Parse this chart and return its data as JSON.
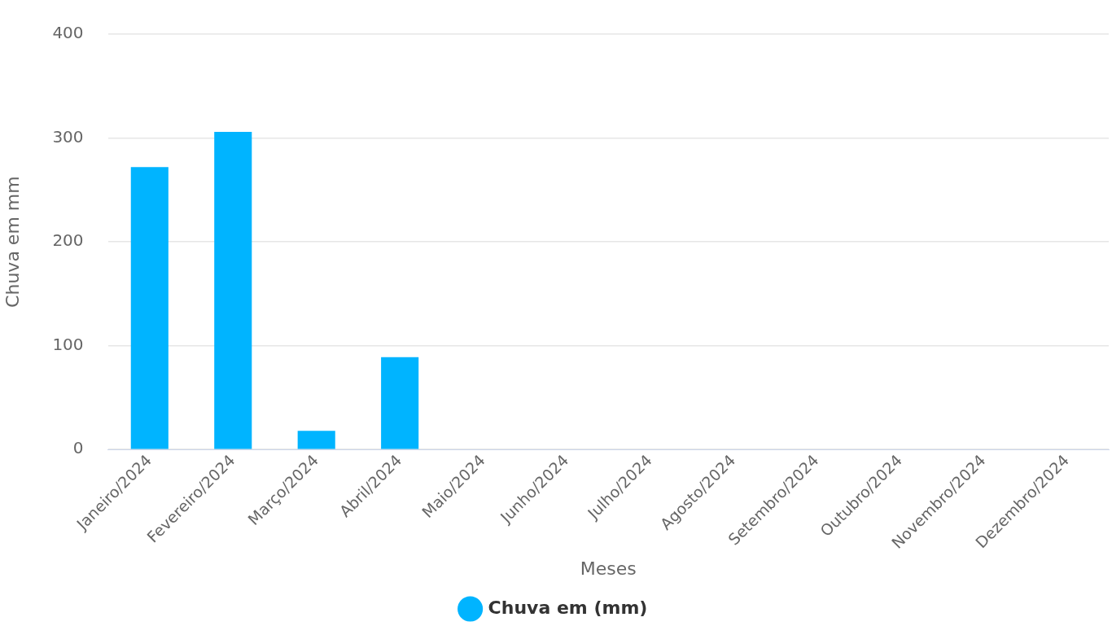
{
  "chart_data": {
    "type": "bar",
    "xlabel": "Meses",
    "ylabel": "Chuva em mm",
    "categories": [
      "Janeiro/2024",
      "Fevereiro/2024",
      "Março/2024",
      "Abril/2024",
      "Maio/2024",
      "Junho/2024",
      "Julho/2024",
      "Agosto/2024",
      "Setembro/2024",
      "Outubro/2024",
      "Novembro/2024",
      "Dezembro/2024"
    ],
    "series": [
      {
        "name": "Chuva em (mm)",
        "color": "#00b4ff",
        "values": [
          272,
          306,
          18,
          89,
          0,
          0,
          0,
          0,
          0,
          0,
          0,
          0
        ]
      }
    ],
    "ylim": [
      0,
      400
    ],
    "yticks": [
      0,
      100,
      200,
      300,
      400
    ],
    "grid": "y",
    "legend": "bottom"
  }
}
